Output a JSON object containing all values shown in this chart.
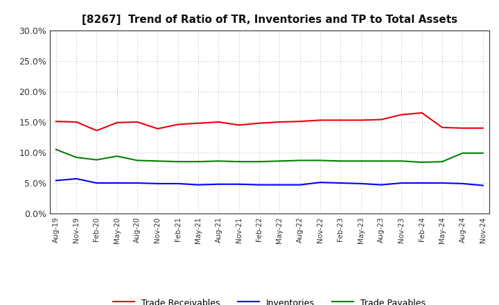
{
  "title": "[8267]  Trend of Ratio of TR, Inventories and TP to Total Assets",
  "x_labels": [
    "Aug-19",
    "Nov-19",
    "Feb-20",
    "May-20",
    "Aug-20",
    "Nov-20",
    "Feb-21",
    "May-21",
    "Aug-21",
    "Nov-21",
    "Feb-22",
    "May-22",
    "Aug-22",
    "Nov-22",
    "Feb-23",
    "May-23",
    "Aug-23",
    "Nov-23",
    "Feb-24",
    "May-24",
    "Aug-24",
    "Nov-24"
  ],
  "trade_receivables": [
    0.151,
    0.15,
    0.136,
    0.149,
    0.15,
    0.139,
    0.146,
    0.148,
    0.15,
    0.145,
    0.148,
    0.15,
    0.151,
    0.153,
    0.153,
    0.153,
    0.154,
    0.162,
    0.165,
    0.141,
    0.14,
    0.14
  ],
  "inventories": [
    0.054,
    0.057,
    0.05,
    0.05,
    0.05,
    0.049,
    0.049,
    0.047,
    0.048,
    0.048,
    0.047,
    0.047,
    0.047,
    0.051,
    0.05,
    0.049,
    0.047,
    0.05,
    0.05,
    0.05,
    0.049,
    0.046
  ],
  "trade_payables": [
    0.105,
    0.092,
    0.088,
    0.094,
    0.087,
    0.086,
    0.085,
    0.085,
    0.086,
    0.085,
    0.085,
    0.086,
    0.087,
    0.087,
    0.086,
    0.086,
    0.086,
    0.086,
    0.084,
    0.085,
    0.099,
    0.099
  ],
  "color_tr": "#e8000a",
  "color_inv": "#0000ff",
  "color_tp": "#008000",
  "ylim": [
    0.0,
    0.3
  ],
  "yticks": [
    0.0,
    0.05,
    0.1,
    0.15,
    0.2,
    0.25,
    0.3
  ],
  "background_color": "#ffffff",
  "grid_color": "#999999",
  "legend_labels": [
    "Trade Receivables",
    "Inventories",
    "Trade Payables"
  ]
}
